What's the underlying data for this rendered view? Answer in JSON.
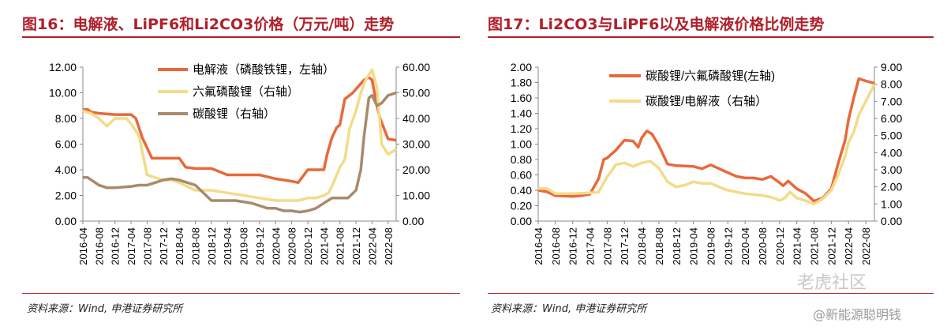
{
  "colors": {
    "title": "#b0202a",
    "orange": "#e8693a",
    "yellow": "#f3db8a",
    "brown": "#a88a6c",
    "rule": "#b0202a"
  },
  "watermark": {
    "brand": "老虎社区",
    "account": "@新能源聪明钱"
  },
  "charts": [
    {
      "title": "图16：电解液、LiPF6和Li2CO3价格（万元/吨）走势",
      "source": "资料来源：Wind, 申港证券研究所",
      "chart_data": {
        "type": "line",
        "x_tick_labels": [
          "2016-04",
          "2016-08",
          "2016-12",
          "2017-04",
          "2017-08",
          "2017-12",
          "2018-04",
          "2018-08",
          "2018-12",
          "2019-04",
          "2019-08",
          "2019-12",
          "2020-04",
          "2020-08",
          "2020-12",
          "2021-04",
          "2021-08",
          "2021-12",
          "2022-04",
          "2022-08"
        ],
        "xlim": [
          0,
          19.5
        ],
        "left_axis": {
          "ylim": [
            0,
            12
          ],
          "ticks": [
            "0.00",
            "2.00",
            "4.00",
            "6.00",
            "8.00",
            "10.00",
            "12.00"
          ]
        },
        "right_axis": {
          "ylim": [
            0,
            60
          ],
          "ticks": [
            "0.00",
            "10.00",
            "20.00",
            "30.00",
            "40.00",
            "50.00",
            "60.00"
          ]
        },
        "legend_position": "top-center",
        "grid": false,
        "series": [
          {
            "name": "电解液（磷酸铁锂，左轴）",
            "axis": "left",
            "color": "#e8693a",
            "x": [
              0,
              0.3,
              0.5,
              1,
              2,
              3,
              3.3,
              3.7,
              4,
              4.3,
              5,
              6,
              6.4,
              7,
              8,
              9,
              10,
              11,
              12,
              13,
              13.4,
              14,
              14.3,
              15,
              15.2,
              15.5,
              15.8,
              16,
              16.3,
              16.8,
              17.5,
              17.8,
              18,
              18.3,
              18.5,
              19,
              19.5
            ],
            "y": [
              8.7,
              8.7,
              8.5,
              8.4,
              8.3,
              8.3,
              8.0,
              6.5,
              5.7,
              4.9,
              4.9,
              4.9,
              4.2,
              4.1,
              4.1,
              3.6,
              3.6,
              3.6,
              3.3,
              3.1,
              3.0,
              4.0,
              4.0,
              4.0,
              5.2,
              6.5,
              7.3,
              7.5,
              9.5,
              10.0,
              11.0,
              11.2,
              11.0,
              9.0,
              8.0,
              6.4,
              6.3
            ]
          },
          {
            "name": "六氟磷酸锂（右轴）",
            "axis": "right",
            "color": "#f3db8a",
            "x": [
              0,
              0.5,
              1,
              1.5,
              2,
              2.3,
              2.7,
              3,
              3.5,
              4,
              4.5,
              5,
              5.5,
              6,
              7,
              8,
              9,
              10,
              11,
              12,
              12.5,
              13,
              13.4,
              14,
              14.5,
              15,
              15.3,
              15.6,
              16,
              16.3,
              16.6,
              17,
              17.3,
              17.6,
              17.9,
              18,
              18.3,
              18.6,
              19,
              19.5
            ],
            "y": [
              43,
              42,
              40,
              37,
              40,
              40,
              40,
              38,
              33,
              18,
              17,
              16,
              16,
              15,
              12,
              12,
              11,
              10,
              9,
              8,
              8,
              8,
              8,
              9,
              9,
              10,
              11,
              15,
              21,
              24,
              36,
              43,
              50,
              55,
              58,
              59,
              52,
              30,
              26,
              28
            ]
          },
          {
            "name": "碳酸锂（右轴）",
            "axis": "right",
            "color": "#a88a6c",
            "x": [
              0,
              0.3,
              1,
              1.5,
              2,
              3,
              3.5,
              4,
              4.5,
              5,
              5.5,
              6,
              6.5,
              7,
              7.5,
              8,
              9,
              9.5,
              10,
              10.5,
              11,
              11.5,
              12,
              12.5,
              13,
              13.5,
              14,
              14.5,
              15,
              15.5,
              16,
              16.5,
              17,
              17.3,
              17.5,
              17.8,
              18,
              18.3,
              18.6,
              19,
              19.5
            ],
            "y": [
              17,
              17,
              14,
              13,
              13,
              13.5,
              14,
              14,
              15,
              16,
              16.5,
              16,
              15,
              14,
              11,
              8,
              8,
              8,
              7.5,
              7,
              6,
              5,
              5,
              4,
              4,
              3.5,
              4,
              5,
              7,
              9,
              9,
              9,
              12,
              20,
              33,
              48,
              49,
              45,
              46,
              49,
              50
            ]
          }
        ]
      }
    },
    {
      "title": "图17：Li2CO3与LiPF6以及电解液价格比例走势",
      "source": "资料来源：Wind, 申港证券研究所",
      "chart_data": {
        "type": "line",
        "x_tick_labels": [
          "2016-04",
          "2016-08",
          "2016-12",
          "2017-04",
          "2017-08",
          "2017-12",
          "2018-04",
          "2018-08",
          "2018-12",
          "2019-04",
          "2019-08",
          "2019-12",
          "2020-04",
          "2020-08",
          "2020-12",
          "2021-04",
          "2021-08",
          "2021-12",
          "2022-04",
          "2022-08"
        ],
        "xlim": [
          0,
          19.5
        ],
        "left_axis": {
          "ylim": [
            0,
            2
          ],
          "ticks": [
            "0.00",
            "0.20",
            "0.40",
            "0.60",
            "0.80",
            "1.00",
            "1.20",
            "1.40",
            "1.60",
            "1.80",
            "2.00"
          ]
        },
        "right_axis": {
          "ylim": [
            0,
            9
          ],
          "ticks": [
            "0.00",
            "1.00",
            "2.00",
            "3.00",
            "4.00",
            "5.00",
            "6.00",
            "7.00",
            "8.00",
            "9.00"
          ]
        },
        "legend_position": "top-center",
        "grid": false,
        "series": [
          {
            "name": "碳酸锂/六氟磷酸锂(左轴)",
            "axis": "left",
            "color": "#e8693a",
            "x": [
              0,
              0.5,
              1,
              2,
              2.5,
              3,
              3.5,
              3.8,
              4,
              4.5,
              5,
              5.5,
              5.8,
              6,
              6.3,
              6.6,
              7,
              7.5,
              8,
              9,
              9.5,
              10,
              10.5,
              11,
              11.5,
              12,
              12.5,
              13,
              13.5,
              14,
              14.2,
              14.5,
              15,
              15.5,
              16,
              16.5,
              17,
              17.4,
              17.8,
              18,
              18.3,
              18.6,
              19,
              19.5
            ],
            "y": [
              0.4,
              0.38,
              0.33,
              0.32,
              0.33,
              0.35,
              0.55,
              0.8,
              0.82,
              0.92,
              1.05,
              1.04,
              0.96,
              1.08,
              1.17,
              1.13,
              0.98,
              0.74,
              0.72,
              0.71,
              0.68,
              0.73,
              0.68,
              0.63,
              0.58,
              0.56,
              0.56,
              0.54,
              0.58,
              0.5,
              0.46,
              0.52,
              0.42,
              0.36,
              0.26,
              0.3,
              0.42,
              0.75,
              1.05,
              1.32,
              1.6,
              1.85,
              1.82,
              1.79
            ]
          },
          {
            "name": "碳酸锂/电解液（右轴）",
            "axis": "right",
            "color": "#f3db8a",
            "x": [
              0,
              0.5,
              1,
              2,
              3,
              3.5,
              4,
              4.3,
              4.5,
              5,
              5.5,
              6,
              6.5,
              7,
              7.5,
              8,
              8.5,
              9,
              9.5,
              10,
              10.5,
              11,
              11.5,
              12,
              12.5,
              13,
              13.5,
              13.8,
              14,
              14.3,
              14.6,
              15,
              15.5,
              16,
              16.5,
              17,
              17.4,
              17.8,
              18,
              18.3,
              18.6,
              19,
              19.5
            ],
            "y": [
              1.9,
              1.9,
              1.6,
              1.6,
              1.65,
              1.7,
              2.6,
              3.0,
              3.3,
              3.4,
              3.2,
              3.4,
              3.5,
              3.1,
              2.3,
              2.0,
              2.1,
              2.3,
              2.2,
              2.2,
              2.0,
              1.8,
              1.7,
              1.6,
              1.55,
              1.5,
              1.4,
              1.3,
              1.2,
              1.35,
              1.7,
              1.35,
              1.2,
              1.0,
              1.3,
              1.8,
              2.7,
              3.8,
              4.6,
              5.2,
              6.2,
              7.0,
              8.0
            ]
          }
        ]
      }
    }
  ]
}
